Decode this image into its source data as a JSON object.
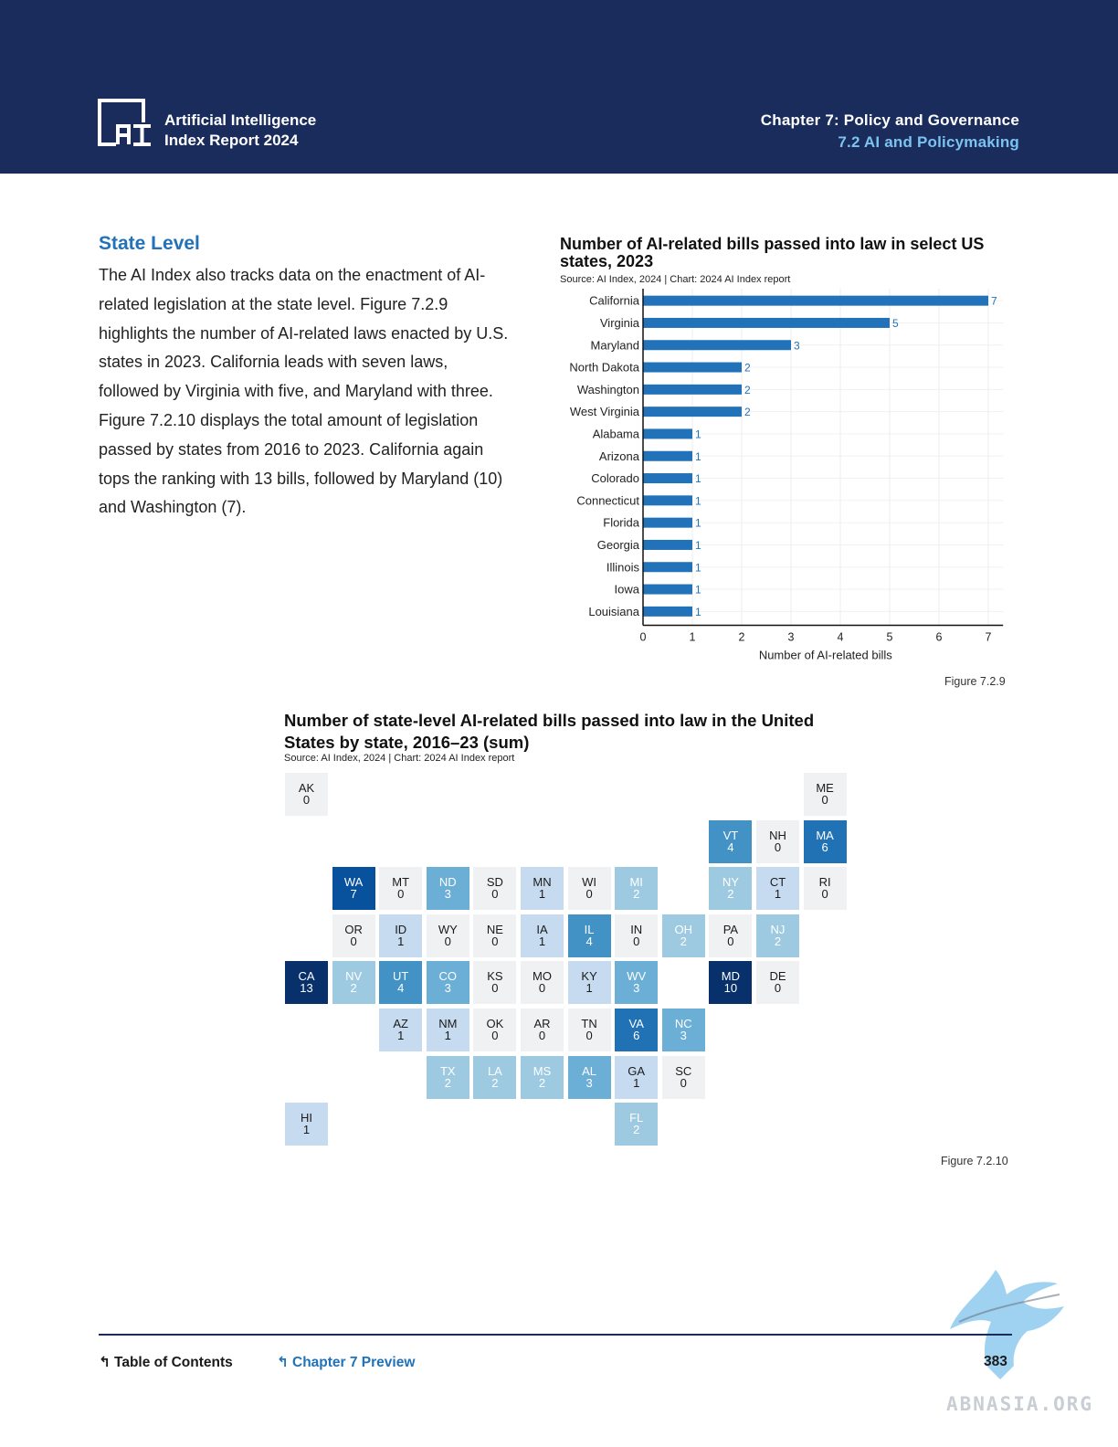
{
  "header": {
    "brand_line1": "Artificial Intelligence",
    "brand_line2": "Index Report 2024",
    "chapter": "Chapter 7: Policy and Governance",
    "section": "7.2 AI and Policymaking"
  },
  "main": {
    "section_title": "State Level",
    "paragraph": "The AI Index also tracks data on the enactment of AI-related legislation at the state level. Figure 7.2.9 highlights the number of AI-related laws enacted by U.S. states in 2023. California leads with seven laws, followed by Virginia with five, and Maryland with three. Figure 7.2.10 displays the total amount of legislation passed by states from 2016 to 2023. California again tops the ranking with 13 bills, followed by Maryland (10) and Washington (7)."
  },
  "chart_data": [
    {
      "type": "bar",
      "orientation": "horizontal",
      "title": "Number of AI-related bills passed into law in select US states, 2023",
      "source": "Source: AI Index, 2024 | Chart: 2024 AI Index report",
      "xlabel": "Number of AI-related bills",
      "xlim": [
        0,
        7
      ],
      "xticks": [
        0,
        1,
        2,
        3,
        4,
        5,
        6,
        7
      ],
      "grid": true,
      "bar_color": "#2172b8",
      "categories": [
        "California",
        "Virginia",
        "Maryland",
        "North Dakota",
        "Washington",
        "West Virginia",
        "Alabama",
        "Arizona",
        "Colorado",
        "Connecticut",
        "Florida",
        "Georgia",
        "Illinois",
        "Iowa",
        "Louisiana"
      ],
      "values": [
        7,
        5,
        3,
        2,
        2,
        2,
        1,
        1,
        1,
        1,
        1,
        1,
        1,
        1,
        1
      ],
      "figure_label": "Figure 7.2.9"
    },
    {
      "type": "heatmap",
      "subtype": "tile-grid-map",
      "title": "Number of state-level AI-related bills passed into law in the United States by state, 2016–23 (sum)",
      "source": "Source: AI Index, 2024 | Chart: 2024 AI Index report",
      "figure_label": "Figure 7.2.10",
      "color_scale": [
        "#f0f1f3",
        "#c6dbef",
        "#9ecae1",
        "#6baed6",
        "#4292c6",
        "#2171b5",
        "#08519c",
        "#08306b"
      ],
      "states": [
        {
          "code": "AK",
          "value": 0,
          "row": 0,
          "col": 0
        },
        {
          "code": "ME",
          "value": 0,
          "row": 0,
          "col": 11
        },
        {
          "code": "VT",
          "value": 4,
          "row": 1,
          "col": 9
        },
        {
          "code": "NH",
          "value": 0,
          "row": 1,
          "col": 10
        },
        {
          "code": "MA",
          "value": 6,
          "row": 1,
          "col": 11
        },
        {
          "code": "WA",
          "value": 7,
          "row": 2,
          "col": 1
        },
        {
          "code": "MT",
          "value": 0,
          "row": 2,
          "col": 2
        },
        {
          "code": "ND",
          "value": 3,
          "row": 2,
          "col": 3
        },
        {
          "code": "SD",
          "value": 0,
          "row": 2,
          "col": 4
        },
        {
          "code": "MN",
          "value": 1,
          "row": 2,
          "col": 5
        },
        {
          "code": "WI",
          "value": 0,
          "row": 2,
          "col": 6
        },
        {
          "code": "MI",
          "value": 2,
          "row": 2,
          "col": 7
        },
        {
          "code": "NY",
          "value": 2,
          "row": 2,
          "col": 9
        },
        {
          "code": "CT",
          "value": 1,
          "row": 2,
          "col": 10
        },
        {
          "code": "RI",
          "value": 0,
          "row": 2,
          "col": 11
        },
        {
          "code": "OR",
          "value": 0,
          "row": 3,
          "col": 1
        },
        {
          "code": "ID",
          "value": 1,
          "row": 3,
          "col": 2
        },
        {
          "code": "WY",
          "value": 0,
          "row": 3,
          "col": 3
        },
        {
          "code": "NE",
          "value": 0,
          "row": 3,
          "col": 4
        },
        {
          "code": "IA",
          "value": 1,
          "row": 3,
          "col": 5
        },
        {
          "code": "IL",
          "value": 4,
          "row": 3,
          "col": 6
        },
        {
          "code": "IN",
          "value": 0,
          "row": 3,
          "col": 7
        },
        {
          "code": "OH",
          "value": 2,
          "row": 3,
          "col": 8
        },
        {
          "code": "PA",
          "value": 0,
          "row": 3,
          "col": 9
        },
        {
          "code": "NJ",
          "value": 2,
          "row": 3,
          "col": 10
        },
        {
          "code": "CA",
          "value": 13,
          "row": 4,
          "col": 0
        },
        {
          "code": "NV",
          "value": 2,
          "row": 4,
          "col": 1
        },
        {
          "code": "UT",
          "value": 4,
          "row": 4,
          "col": 2
        },
        {
          "code": "CO",
          "value": 3,
          "row": 4,
          "col": 3
        },
        {
          "code": "KS",
          "value": 0,
          "row": 4,
          "col": 4
        },
        {
          "code": "MO",
          "value": 0,
          "row": 4,
          "col": 5
        },
        {
          "code": "KY",
          "value": 1,
          "row": 4,
          "col": 6
        },
        {
          "code": "WV",
          "value": 3,
          "row": 4,
          "col": 7
        },
        {
          "code": "MD",
          "value": 10,
          "row": 4,
          "col": 9
        },
        {
          "code": "DE",
          "value": 0,
          "row": 4,
          "col": 10
        },
        {
          "code": "AZ",
          "value": 1,
          "row": 5,
          "col": 2
        },
        {
          "code": "NM",
          "value": 1,
          "row": 5,
          "col": 3
        },
        {
          "code": "OK",
          "value": 0,
          "row": 5,
          "col": 4
        },
        {
          "code": "AR",
          "value": 0,
          "row": 5,
          "col": 5
        },
        {
          "code": "TN",
          "value": 0,
          "row": 5,
          "col": 6
        },
        {
          "code": "VA",
          "value": 6,
          "row": 5,
          "col": 7
        },
        {
          "code": "NC",
          "value": 3,
          "row": 5,
          "col": 8
        },
        {
          "code": "TX",
          "value": 2,
          "row": 6,
          "col": 3
        },
        {
          "code": "LA",
          "value": 2,
          "row": 6,
          "col": 4
        },
        {
          "code": "MS",
          "value": 2,
          "row": 6,
          "col": 5
        },
        {
          "code": "AL",
          "value": 3,
          "row": 6,
          "col": 6
        },
        {
          "code": "GA",
          "value": 1,
          "row": 6,
          "col": 7
        },
        {
          "code": "SC",
          "value": 0,
          "row": 6,
          "col": 8
        },
        {
          "code": "HI",
          "value": 1,
          "row": 7,
          "col": 0
        },
        {
          "code": "FL",
          "value": 2,
          "row": 7,
          "col": 7
        }
      ]
    }
  ],
  "footer": {
    "toc_label": "Table of Contents",
    "chapter_preview_label": "Chapter 7 Preview",
    "page_number": "383",
    "watermark_text": "ABNASIA.ORG",
    "arrow_icon": "return-arrow-icon"
  },
  "colors": {
    "header_bg": "#192c5c",
    "accent": "#2172b8",
    "section_light": "#7cc3f0"
  }
}
